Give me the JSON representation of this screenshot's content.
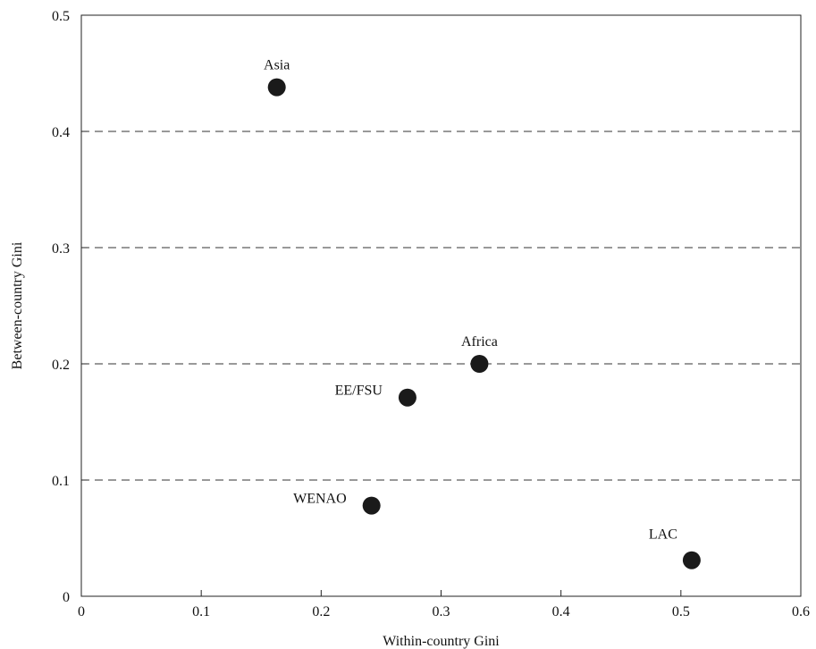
{
  "chart_data": {
    "type": "scatter",
    "title": "",
    "xlabel": "Within-country Gini",
    "ylabel": "Between-country Gini",
    "xlim": [
      0,
      0.6
    ],
    "ylim": [
      0,
      0.5
    ],
    "x_ticks": [
      "0",
      "0.1",
      "0.2",
      "0.3",
      "0.4",
      "0.5",
      "0.6"
    ],
    "y_ticks": [
      "0",
      "0.1",
      "0.2",
      "0.3",
      "0.4",
      "0.5"
    ],
    "grid": "horizontal dashed at 0.1, 0.2, 0.3, 0.4",
    "points": [
      {
        "label": "Asia",
        "x": 0.163,
        "y": 0.438
      },
      {
        "label": "Africa",
        "x": 0.332,
        "y": 0.2
      },
      {
        "label": "EE/FSU",
        "x": 0.272,
        "y": 0.171
      },
      {
        "label": "WENAO",
        "x": 0.242,
        "y": 0.078
      },
      {
        "label": "LAC",
        "x": 0.509,
        "y": 0.031
      }
    ],
    "marker_color": "#1a1a1a"
  }
}
